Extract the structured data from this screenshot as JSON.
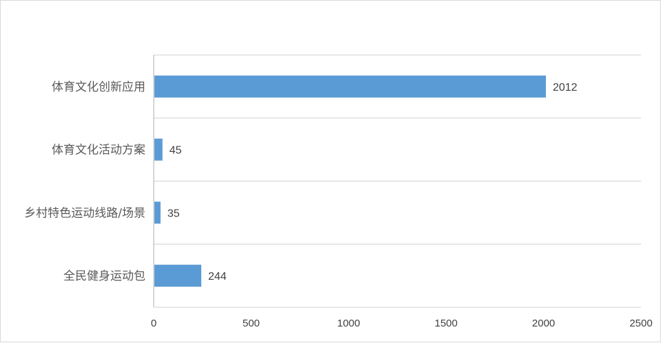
{
  "chart_data": {
    "type": "bar",
    "orientation": "horizontal",
    "title": "",
    "xlabel": "",
    "ylabel": "",
    "categories": [
      "体育文化创新应用",
      "体育文化活动方案",
      "乡村特色运动线路/场景",
      "全民健身运动包"
    ],
    "values": [
      2012,
      45,
      35,
      244
    ],
    "xlim": [
      0,
      2500
    ],
    "xticks": [
      0,
      500,
      1000,
      1500,
      2000,
      2500
    ],
    "grid": "horizontal",
    "legend": "none",
    "data_labels": true,
    "bar_color": "#5b9bd5"
  }
}
